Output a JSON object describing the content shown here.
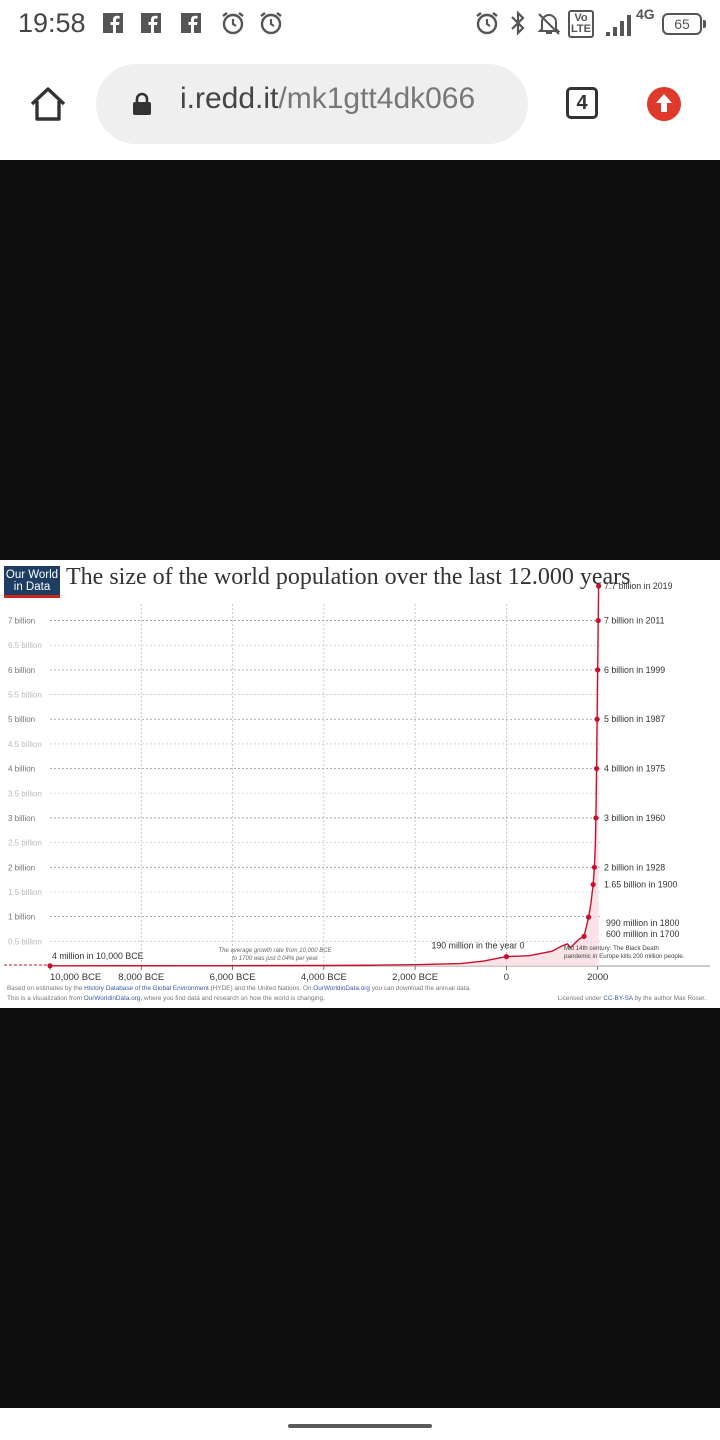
{
  "status_bar": {
    "time": "19:58",
    "left_icons": [
      "facebook-icon",
      "facebook-icon",
      "facebook-icon",
      "alarm-icon",
      "alarm-icon"
    ],
    "right_icons": [
      "alarm-icon",
      "bluetooth-icon",
      "silent-bell-icon",
      "volte-icon",
      "signal-icon",
      "4g-icon"
    ],
    "volte_label": "Vo LTE",
    "network_label": "4G",
    "battery_level": "65"
  },
  "browser": {
    "url_host": "i.redd.it",
    "url_path": "/mk1gtt4dk066",
    "tab_count": "4"
  },
  "chart": {
    "logo_line1": "Our World",
    "logo_line2": "in Data",
    "title": "The size of the world population over the last 12.000 years",
    "note_growth": [
      "The average growth rate from 10,000 BCE",
      "to 1700 was just 0.04% per year"
    ],
    "note_plague": [
      "Mid 14th century: The Black Death",
      "pandemic in Europe kills 200 million people."
    ],
    "source_line1_parts": [
      "Based on estimates by the ",
      "History Database of the Global Environment",
      " (HYDE) and the United Nations. On ",
      "OurWorldinData.org",
      " you can download the annual data."
    ],
    "source_line2_parts": [
      "This is a visualization from ",
      "OurWorldinData.org",
      ", where you find data and research on how the world is changing."
    ],
    "license_parts": [
      "Licensed under ",
      "CC-BY-SA",
      " by the author Max Roser."
    ]
  },
  "chart_data": {
    "type": "line",
    "title": "The size of the world population over the last 12.000 years",
    "y_tick_labels": [
      "0.5 billion",
      "1 billion",
      "1.5 billion",
      "2 billion",
      "2.5 billion",
      "3 billion",
      "3.5 billion",
      "4 billion",
      "4.5 billion",
      "5 billion",
      "5.5 billion",
      "6 billion",
      "6.5 billion",
      "7 billion"
    ],
    "y_tick_values": [
      0.5,
      1,
      1.5,
      2,
      2.5,
      3,
      3.5,
      4,
      4.5,
      5,
      5.5,
      6,
      6.5,
      7
    ],
    "x_tick_labels": [
      "10,000 BCE",
      "8,000 BCE",
      "6,000 BCE",
      "4,000 BCE",
      "2,000 BCE",
      "0",
      "2000"
    ],
    "x_tick_values": [
      -10000,
      -8000,
      -6000,
      -4000,
      -2000,
      0,
      2000
    ],
    "xlim": [
      -10000,
      2050
    ],
    "ylim": [
      0,
      7.7
    ],
    "series": [
      {
        "color": "#c8102e",
        "points": [
          {
            "x": -10000,
            "y": 0.004
          },
          {
            "x": -8000,
            "y": 0.005
          },
          {
            "x": -6000,
            "y": 0.007
          },
          {
            "x": -4000,
            "y": 0.01
          },
          {
            "x": -3000,
            "y": 0.015
          },
          {
            "x": -2000,
            "y": 0.027
          },
          {
            "x": -1000,
            "y": 0.05
          },
          {
            "x": -500,
            "y": 0.1
          },
          {
            "x": 0,
            "y": 0.19
          },
          {
            "x": 500,
            "y": 0.21
          },
          {
            "x": 1000,
            "y": 0.3
          },
          {
            "x": 1200,
            "y": 0.4
          },
          {
            "x": 1340,
            "y": 0.45
          },
          {
            "x": 1400,
            "y": 0.37
          },
          {
            "x": 1500,
            "y": 0.46
          },
          {
            "x": 1600,
            "y": 0.55
          },
          {
            "x": 1700,
            "y": 0.6
          },
          {
            "x": 1800,
            "y": 0.99
          },
          {
            "x": 1850,
            "y": 1.26
          },
          {
            "x": 1900,
            "y": 1.65
          },
          {
            "x": 1928,
            "y": 2
          },
          {
            "x": 1950,
            "y": 2.53
          },
          {
            "x": 1960,
            "y": 3
          },
          {
            "x": 1975,
            "y": 4
          },
          {
            "x": 1987,
            "y": 5
          },
          {
            "x": 1999,
            "y": 6
          },
          {
            "x": 2011,
            "y": 7
          },
          {
            "x": 2019,
            "y": 7.7
          }
        ]
      }
    ],
    "annotations": [
      {
        "x": -10000,
        "y": 0.004,
        "label": "4 million in 10,000 BCE"
      },
      {
        "x": 0,
        "y": 0.19,
        "label": "190 million in the year 0"
      },
      {
        "x": 1700,
        "y": 0.6,
        "label": "600 million in 1700"
      },
      {
        "x": 1800,
        "y": 0.99,
        "label": "990 million in 1800"
      },
      {
        "x": 1900,
        "y": 1.65,
        "label": "1.65 billion in 1900"
      },
      {
        "x": 1928,
        "y": 2,
        "label": "2 billion in 1928"
      },
      {
        "x": 1960,
        "y": 3,
        "label": "3 billion in 1960"
      },
      {
        "x": 1975,
        "y": 4,
        "label": "4 billion in 1975"
      },
      {
        "x": 1987,
        "y": 5,
        "label": "5 billion in 1987"
      },
      {
        "x": 1999,
        "y": 6,
        "label": "6 billion in 1999"
      },
      {
        "x": 2011,
        "y": 7,
        "label": "7 billion in 2011"
      },
      {
        "x": 2019,
        "y": 7.7,
        "label": "7.7 billion in 2019"
      }
    ]
  }
}
